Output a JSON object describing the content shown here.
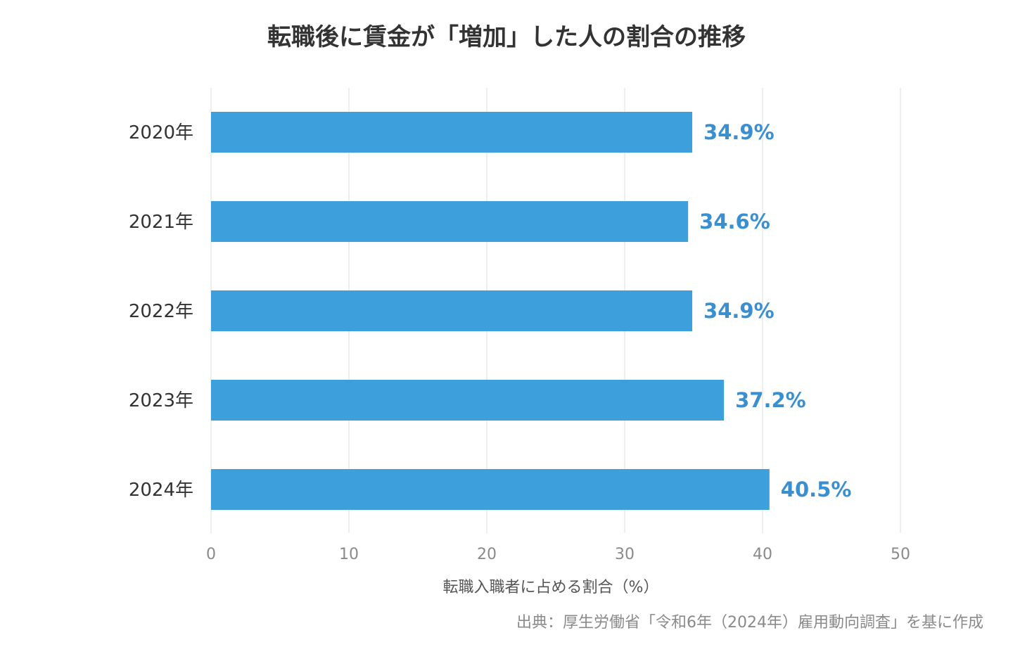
{
  "chart_data": {
    "type": "bar",
    "orientation": "horizontal",
    "title": "転職後に賃金が「増加」した人の割合の推移",
    "categories": [
      "2020年",
      "2021年",
      "2022年",
      "2023年",
      "2024年"
    ],
    "series": [
      {
        "values": [
          34.9,
          34.6,
          34.9,
          37.2,
          40.5
        ]
      }
    ],
    "value_labels": [
      "34.9%",
      "34.6%",
      "34.9%",
      "37.2%",
      "40.5%"
    ],
    "xlabel": "転職入職者に占める割合（%）",
    "ylabel": "",
    "xlim": [
      0,
      50
    ],
    "x_ticks": [
      0,
      10,
      20,
      30,
      40,
      50
    ],
    "x_tick_labels": [
      "0",
      "10",
      "20",
      "30",
      "40",
      "50"
    ],
    "grid": "vertical",
    "legend": "none",
    "source": "出典：厚生労働省「令和6年（2024年）雇用動向調査」を基に作成"
  },
  "colors": {
    "bar": "#3e9fdd",
    "value_label": "#3a8fd0",
    "grid": "#eeeeee"
  }
}
